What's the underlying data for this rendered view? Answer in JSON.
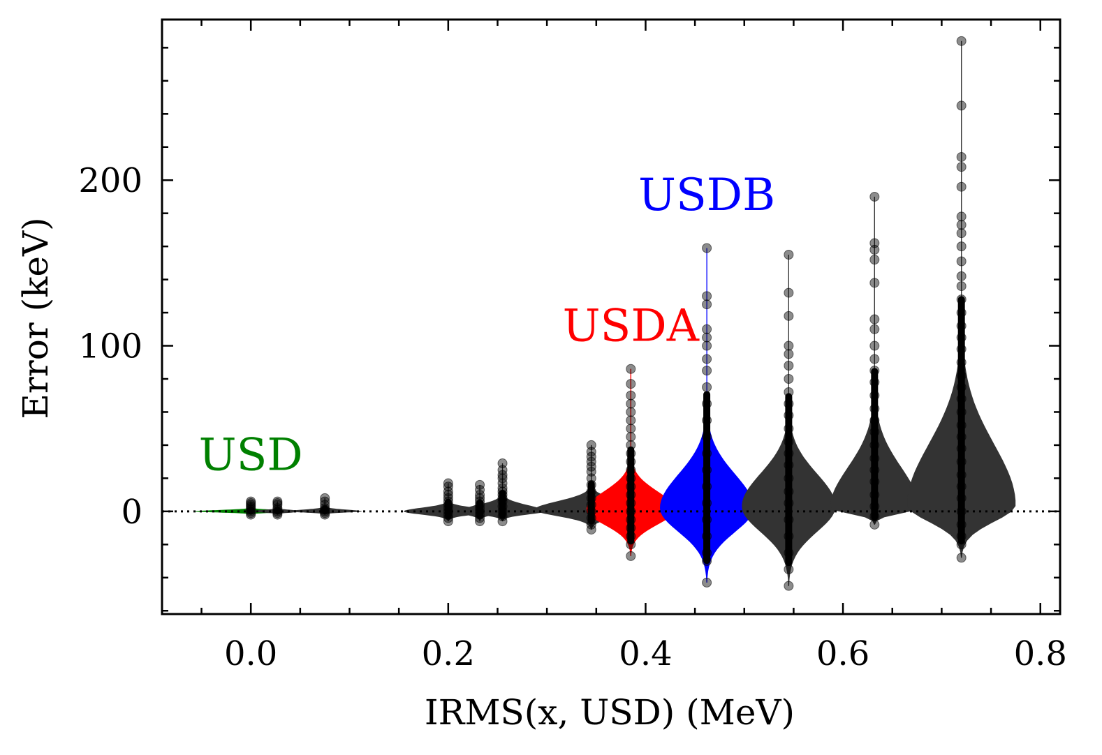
{
  "chart_data": {
    "type": "violin",
    "title": "",
    "xlabel": "IRMS(x, USD) (MeV)",
    "ylabel": "Error (keV)",
    "xlim": [
      -0.09,
      0.82
    ],
    "ylim": [
      -62,
      297
    ],
    "xticks": [
      0.0,
      0.2,
      0.4,
      0.6,
      0.8
    ],
    "xtick_labels": [
      "0.0",
      "0.2",
      "0.4",
      "0.6",
      "0.8"
    ],
    "yticks": [
      0,
      100,
      200
    ],
    "ytick_labels": [
      "0",
      "100",
      "200"
    ],
    "reference_line": {
      "y": 0,
      "style": "dotted",
      "color": "#000000"
    },
    "grid": false,
    "annotations": [
      {
        "text": "USD",
        "x": 0.0,
        "y": 25,
        "color": "#008000"
      },
      {
        "text": "USDA",
        "x": 0.385,
        "y": 103,
        "color": "#ff0000"
      },
      {
        "text": "USDB",
        "x": 0.462,
        "y": 182,
        "color": "#0000ff"
      }
    ],
    "violins": [
      {
        "x": 0.0,
        "min": -2,
        "max": 6,
        "peak": 0,
        "width": 0.115,
        "color": "#008000",
        "points": [
          6,
          4,
          3,
          2,
          1,
          0,
          -1,
          -2,
          5
        ]
      },
      {
        "x": 0.027,
        "min": -2,
        "max": 6,
        "peak": 0,
        "width": 0.055,
        "color": "#333333",
        "points": [
          6,
          4,
          2,
          1,
          0,
          -1,
          -2,
          5
        ]
      },
      {
        "x": 0.075,
        "min": -2,
        "max": 8,
        "peak": 0,
        "width": 0.075,
        "color": "#333333",
        "points": [
          8,
          6,
          4,
          2,
          1,
          0,
          -1,
          -2
        ]
      },
      {
        "x": 0.2,
        "min": -6,
        "max": 17,
        "peak": 0,
        "width": 0.09,
        "color": "#333333",
        "points": [
          17,
          15,
          12,
          10,
          8,
          6,
          4,
          2,
          0,
          -2,
          -4,
          -6
        ]
      },
      {
        "x": 0.232,
        "min": -6,
        "max": 16,
        "peak": 0,
        "width": 0.05,
        "color": "#333333",
        "points": [
          16,
          13,
          10,
          8,
          6,
          4,
          2,
          0,
          -2,
          -4,
          -6
        ]
      },
      {
        "x": 0.255,
        "min": -6,
        "max": 29,
        "peak": 0,
        "width": 0.085,
        "color": "#333333",
        "points": [
          29,
          25,
          22,
          20,
          17,
          14,
          12,
          10,
          8,
          6,
          3,
          0,
          -3,
          -6
        ]
      },
      {
        "x": 0.345,
        "min": -11,
        "max": 40,
        "peak": 1,
        "width": 0.115,
        "color": "#333333",
        "points": [
          40,
          36,
          33,
          30,
          27,
          24,
          20,
          16,
          12,
          8,
          4,
          0,
          -4,
          -8,
          -11
        ]
      },
      {
        "x": 0.385,
        "min": -27,
        "max": 86,
        "peak": 1,
        "width": 0.09,
        "color": "#ff0000",
        "points": [
          86,
          77,
          70,
          65,
          60,
          55,
          50,
          45,
          40,
          35,
          30,
          25,
          20,
          15,
          10,
          5,
          0,
          -5,
          -10,
          -15,
          -20,
          -27
        ]
      },
      {
        "x": 0.462,
        "min": -43,
        "max": 159,
        "peak": 2,
        "width": 0.095,
        "color": "#0000ff",
        "points": [
          159,
          130,
          125,
          110,
          105,
          100,
          92,
          85,
          75,
          65,
          55,
          45,
          35,
          25,
          15,
          5,
          -5,
          -15,
          -25,
          -30,
          -43
        ]
      },
      {
        "x": 0.545,
        "min": -45,
        "max": 155,
        "peak": 3,
        "width": 0.095,
        "color": "#333333",
        "points": [
          155,
          132,
          118,
          100,
          95,
          88,
          80,
          72,
          65,
          58,
          50,
          42,
          35,
          28,
          20,
          12,
          5,
          -5,
          -15,
          -25,
          -35,
          -45
        ]
      },
      {
        "x": 0.632,
        "min": -8,
        "max": 190,
        "peak": 2,
        "width": 0.09,
        "color": "#333333",
        "points": [
          190,
          162,
          158,
          152,
          138,
          116,
          110,
          100,
          92,
          85,
          78,
          70,
          62,
          55,
          48,
          40,
          32,
          25,
          18,
          10,
          3,
          -3,
          -8
        ]
      },
      {
        "x": 0.72,
        "min": -28,
        "max": 284,
        "peak": 4,
        "width": 0.11,
        "color": "#333333",
        "points": [
          284,
          245,
          214,
          208,
          196,
          178,
          173,
          168,
          160,
          151,
          142,
          136,
          128,
          120,
          112,
          105,
          98,
          90,
          82,
          75,
          68,
          60,
          52,
          45,
          38,
          30,
          22,
          15,
          8,
          0,
          -8,
          -15,
          -20,
          -28
        ]
      }
    ]
  }
}
